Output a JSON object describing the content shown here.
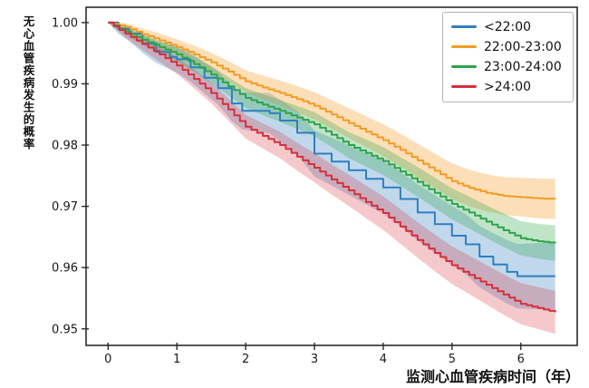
{
  "figure": {
    "background": "#ffffff",
    "spine_color": "#2b2b2b",
    "text_color": "#1a1a1a"
  },
  "chart_data": {
    "type": "line",
    "subtype": "kaplan-meier-survival",
    "title": "",
    "xlabel": "监测心血管疾病时间（年）",
    "ylabel": "无心血管疾病发生的概率",
    "xlim": [
      -0.32,
      6.82
    ],
    "ylim": [
      0.9473,
      1.0025
    ],
    "xtick_values": [
      0,
      1,
      2,
      3,
      4,
      5,
      6
    ],
    "xtick_labels": [
      "0",
      "1",
      "2",
      "3",
      "4",
      "5",
      "6"
    ],
    "ytick_values": [
      1.0,
      0.99,
      0.98,
      0.97,
      0.96,
      0.95
    ],
    "ytick_labels": [
      "1.00",
      "0.99",
      "0.98",
      "0.97",
      "0.96",
      "0.95"
    ],
    "grid": false,
    "legend_position": "upper right",
    "x_data_max": 6.5,
    "series": [
      {
        "name": "<22:00",
        "color": "#2f7fbf",
        "band_color": "rgba(49,127,191,0.30)",
        "band_half_end": 0.0055,
        "substeps": 1,
        "x": [
          0,
          0.15,
          0.3,
          0.5,
          0.7,
          0.9,
          1.0,
          1.2,
          1.4,
          1.6,
          1.8,
          1.95,
          2.35,
          2.5,
          2.75,
          3.0,
          3.25,
          3.5,
          3.75,
          4.0,
          4.25,
          4.5,
          4.75,
          5.0,
          5.2,
          5.4,
          5.6,
          5.8,
          5.95,
          6.5
        ],
        "y": [
          1.0,
          0.999,
          0.9982,
          0.9966,
          0.9952,
          0.9944,
          0.994,
          0.9927,
          0.991,
          0.9893,
          0.9868,
          0.9856,
          0.9852,
          0.984,
          0.982,
          0.9786,
          0.9773,
          0.9759,
          0.9745,
          0.9731,
          0.9712,
          0.969,
          0.9671,
          0.9652,
          0.9638,
          0.9618,
          0.9605,
          0.9593,
          0.9586,
          0.9586
        ]
      },
      {
        "name": "22:00-23:00",
        "color": "#f39c24",
        "band_color": "rgba(247,156,36,0.32)",
        "band_half_end": 0.0033,
        "substeps": 3,
        "x": [
          0,
          0.25,
          0.5,
          0.75,
          1.0,
          1.25,
          1.5,
          1.75,
          2.0,
          2.25,
          2.5,
          2.75,
          3.0,
          3.25,
          3.5,
          3.75,
          4.0,
          4.25,
          4.5,
          4.75,
          5.0,
          5.25,
          5.5,
          5.75,
          6.0,
          6.25,
          6.5
        ],
        "y": [
          1.0,
          0.9993,
          0.9981,
          0.9971,
          0.996,
          0.9948,
          0.9935,
          0.992,
          0.9904,
          0.9894,
          0.9885,
          0.9875,
          0.9864,
          0.985,
          0.9836,
          0.9822,
          0.9808,
          0.9792,
          0.9775,
          0.9758,
          0.9741,
          0.973,
          0.9722,
          0.9717,
          0.9715,
          0.9713,
          0.9712
        ]
      },
      {
        "name": "23:00-24:00",
        "color": "#2ea44a",
        "band_color": "rgba(46,164,74,0.30)",
        "band_half_end": 0.0029,
        "substeps": 3,
        "x": [
          0,
          0.25,
          0.5,
          0.75,
          1.0,
          1.25,
          1.5,
          1.75,
          2.0,
          2.25,
          2.5,
          2.75,
          3.0,
          3.25,
          3.5,
          3.75,
          4.0,
          4.25,
          4.5,
          4.75,
          5.0,
          5.25,
          5.5,
          5.75,
          6.0,
          6.25,
          6.5
        ],
        "y": [
          1.0,
          0.9986,
          0.9972,
          0.996,
          0.9948,
          0.9932,
          0.9915,
          0.9896,
          0.9877,
          0.9866,
          0.9856,
          0.9845,
          0.9834,
          0.9817,
          0.98,
          0.9787,
          0.9774,
          0.9757,
          0.974,
          0.9722,
          0.9704,
          0.969,
          0.9675,
          0.9661,
          0.9648,
          0.9643,
          0.964
        ]
      },
      {
        "name": ">24:00",
        "color": "#d7303a",
        "band_color": "rgba(215,48,58,0.26)",
        "band_half_end": 0.0035,
        "substeps": 3,
        "x": [
          0,
          0.25,
          0.5,
          0.75,
          1.0,
          1.25,
          1.5,
          1.75,
          2.0,
          2.25,
          2.5,
          2.75,
          3.0,
          3.25,
          3.5,
          3.75,
          4.0,
          4.25,
          4.5,
          4.75,
          5.0,
          5.25,
          5.5,
          5.75,
          6.0,
          6.25,
          6.5
        ],
        "y": [
          1.0,
          0.9982,
          0.9965,
          0.9948,
          0.993,
          0.9908,
          0.9885,
          0.9858,
          0.983,
          0.9815,
          0.98,
          0.9781,
          0.9763,
          0.9744,
          0.9726,
          0.9707,
          0.9689,
          0.9667,
          0.9645,
          0.9624,
          0.9604,
          0.9588,
          0.9572,
          0.9556,
          0.9541,
          0.9534,
          0.9527
        ]
      }
    ]
  }
}
